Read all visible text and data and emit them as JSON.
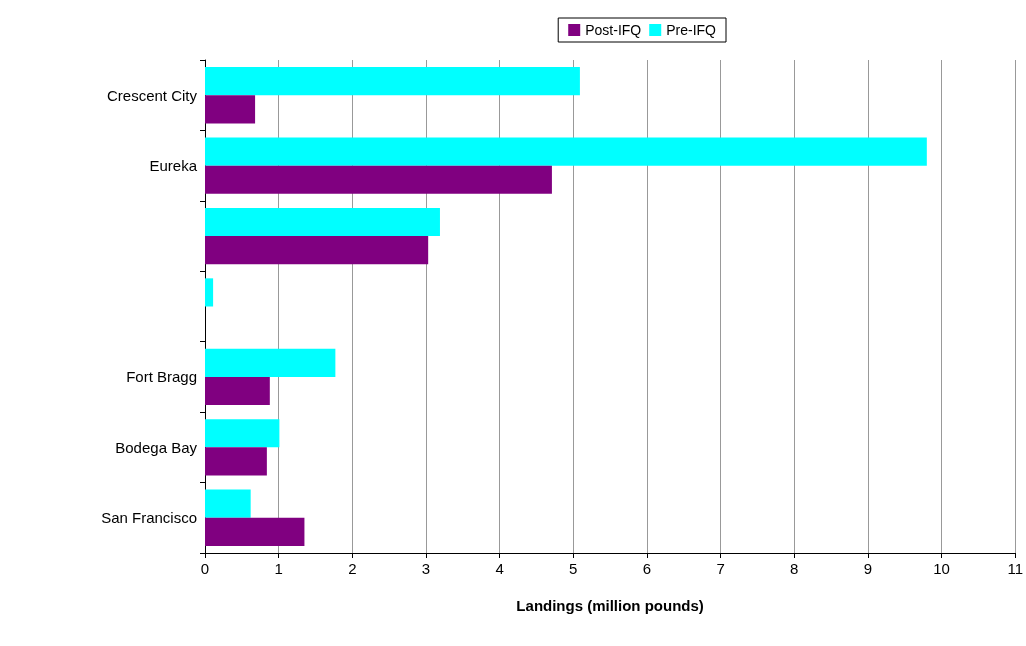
{
  "chart_data": {
    "type": "bar",
    "orientation": "horizontal",
    "xlabel": "Landings (million pounds)",
    "categories": [
      "Crescent City",
      "Eureka",
      null,
      null,
      "Fort Bragg",
      "Bodega Bay",
      "San Francisco"
    ],
    "series": [
      {
        "name": "Post-IFQ",
        "color": "#800080",
        "values": [
          0.68,
          4.71,
          3.03,
          null,
          0.88,
          0.84,
          1.35
        ]
      },
      {
        "name": "Pre-IFQ",
        "color": "#00ffff",
        "values": [
          5.09,
          9.8,
          3.19,
          0.11,
          1.77,
          1.01,
          0.62
        ]
      }
    ],
    "xlim": [
      0,
      11
    ],
    "xticks": [
      0,
      1,
      2,
      3,
      4,
      5,
      6,
      7,
      8,
      9,
      10,
      11
    ],
    "grid": "x",
    "legend": "top right"
  }
}
